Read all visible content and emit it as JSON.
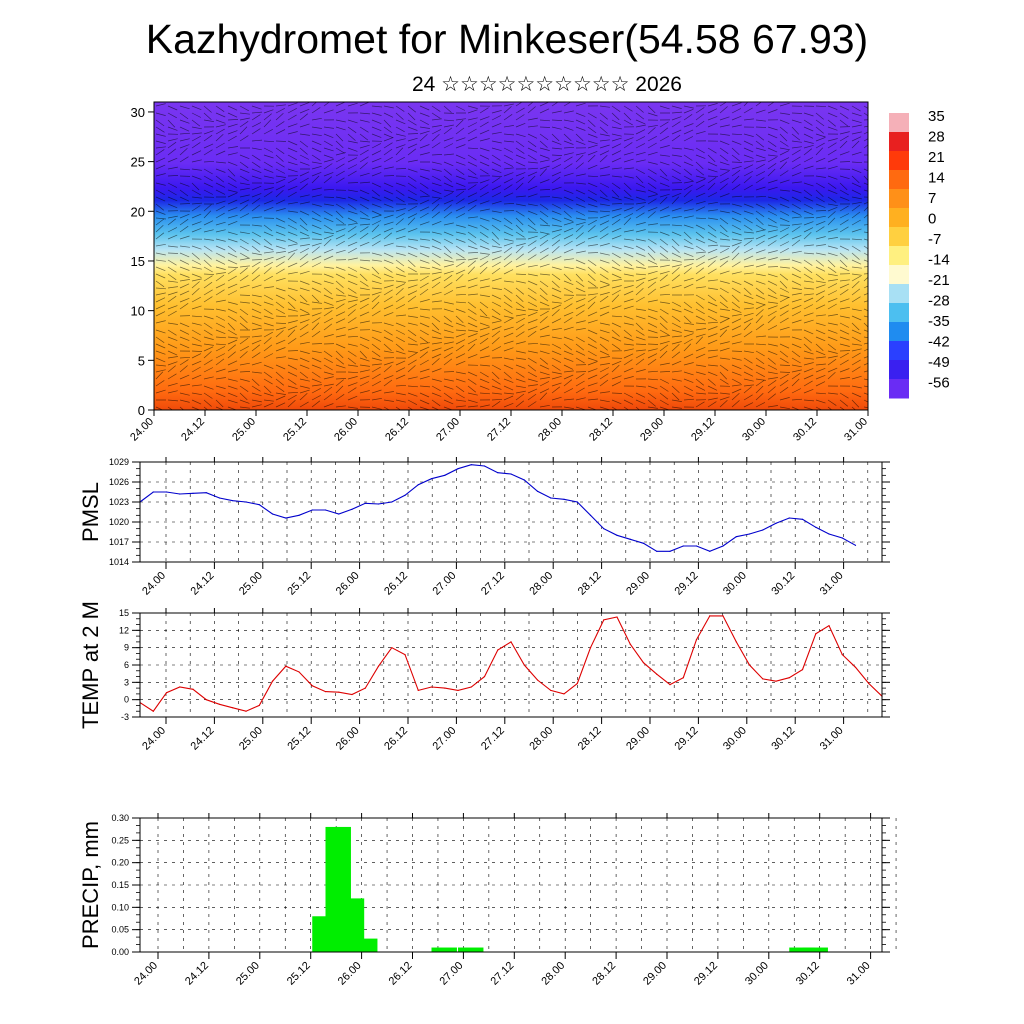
{
  "title": "Kazhydromet for Minkeser(54.58 67.93)",
  "subtitle": "24 ☆☆☆☆☆☆☆☆☆☆ 2026",
  "time_ticks": [
    "24.00",
    "24.12",
    "25.00",
    "25.12",
    "26.00",
    "26.12",
    "27.00",
    "27.12",
    "28.00",
    "28.12",
    "29.00",
    "29.12",
    "30.00",
    "30.12",
    "31.00"
  ],
  "colors": {
    "pmsl_line": "#0000cc",
    "temp_line": "#dd0000",
    "precip_bar": "#00ee00"
  },
  "chart_data": [
    {
      "type": "heatmap",
      "name": "temperature-wind-cross-section",
      "title": "",
      "xlabel": "",
      "ylabel": "",
      "yticks": [
        0,
        5,
        10,
        15,
        20,
        25,
        30
      ],
      "ylim": [
        0,
        31
      ],
      "colorbar": {
        "labels": [
          "35",
          "28",
          "21",
          "14",
          "7",
          "0",
          "-7",
          "-14",
          "-21",
          "-28",
          "-35",
          "-42",
          "-49",
          "-56"
        ],
        "placement": "right"
      },
      "layers": [
        {
          "from": 0,
          "to": 2,
          "range": "warmest orange/red near surface"
        },
        {
          "from": 2,
          "to": 14,
          "range": "orange to yellow"
        },
        {
          "from": 14,
          "to": 20,
          "range": "light blue to cyan"
        },
        {
          "from": 20,
          "to": 23,
          "range": "deep blue band"
        },
        {
          "from": 23,
          "to": 31,
          "range": "violet"
        }
      ]
    },
    {
      "type": "line",
      "name": "PMSL",
      "ylabel": "PMSL",
      "yticks": [
        "1014",
        "1017",
        "1020",
        "1023",
        "1026",
        "1029"
      ],
      "ylim": [
        1014,
        1029
      ],
      "xlim": [
        0,
        7
      ],
      "series": [
        {
          "name": "PMSL",
          "x": [
            0,
            0.125,
            0.25,
            0.375,
            0.5,
            0.625,
            0.75,
            0.875,
            1,
            1.125,
            1.25,
            1.375,
            1.5,
            1.625,
            1.75,
            1.875,
            2,
            2.125,
            2.25,
            2.375,
            2.5,
            2.625,
            2.75,
            2.875,
            3,
            3.125,
            3.25,
            3.375,
            3.5,
            3.625,
            3.75,
            3.875,
            4,
            4.125,
            4.25,
            4.375,
            4.5,
            4.625,
            4.75,
            4.875,
            5,
            5.125,
            5.25,
            5.375,
            5.5,
            5.625,
            5.75,
            5.875,
            6,
            6.125,
            6.25,
            6.375,
            6.5,
            6.625,
            6.75
          ],
          "values": [
            1023,
            1024.5,
            1024.5,
            1024.2,
            1024.3,
            1024.4,
            1023.6,
            1023.2,
            1023,
            1022.6,
            1021.2,
            1020.6,
            1021,
            1021.8,
            1021.8,
            1021.2,
            1021.9,
            1022.8,
            1022.7,
            1023,
            1024,
            1025.6,
            1026.5,
            1027,
            1028,
            1028.6,
            1028.4,
            1027.4,
            1027.2,
            1026.3,
            1024.6,
            1023.6,
            1023.4,
            1023,
            1021,
            1019,
            1018,
            1017.4,
            1016.8,
            1015.6,
            1015.6,
            1016.4,
            1016.4,
            1015.6,
            1016.4,
            1017.8,
            1018.2,
            1018.8,
            1019.8,
            1020.6,
            1020.4,
            1019.2,
            1018.2,
            1017.6,
            1016.5
          ]
        }
      ]
    },
    {
      "type": "line",
      "name": "TEMP at 2 M",
      "ylabel": "TEMP at 2 M",
      "yticks": [
        "-3",
        "0",
        "3",
        "6",
        "9",
        "12",
        "15"
      ],
      "ylim": [
        -3,
        15
      ],
      "xlim": [
        0,
        7
      ],
      "series": [
        {
          "name": "TEMP at 2 M",
          "x": [
            0,
            0.125,
            0.25,
            0.375,
            0.5,
            0.625,
            0.75,
            0.875,
            1,
            1.125,
            1.25,
            1.375,
            1.5,
            1.625,
            1.75,
            1.875,
            2,
            2.125,
            2.25,
            2.375,
            2.5,
            2.625,
            2.75,
            2.875,
            3,
            3.125,
            3.25,
            3.375,
            3.5,
            3.625,
            3.75,
            3.875,
            4,
            4.125,
            4.25,
            4.375,
            4.5,
            4.625,
            4.75,
            4.875,
            5,
            5.125,
            5.25,
            5.375,
            5.5,
            5.625,
            5.75,
            5.875,
            6,
            6.125,
            6.25,
            6.375,
            6.5,
            6.625,
            6.75,
            6.875,
            7
          ],
          "values": [
            -0.5,
            -2,
            1.2,
            2.2,
            1.8,
            0,
            -0.8,
            -1.4,
            -2,
            -1,
            3.2,
            5.8,
            4.8,
            2.4,
            1.4,
            1.3,
            0.9,
            2,
            5.8,
            9,
            7.8,
            1.6,
            2.2,
            2,
            1.6,
            2.2,
            4,
            8.6,
            10,
            6,
            3.4,
            1.6,
            1,
            2.8,
            9,
            13.8,
            14.3,
            9.6,
            6.4,
            4.4,
            2.6,
            3.8,
            10.4,
            14.5,
            14.5,
            10,
            6,
            3.6,
            3.2,
            3.8,
            5.2,
            11.4,
            12.8,
            7.8,
            5.6,
            2.8,
            0.6
          ]
        }
      ]
    },
    {
      "type": "bar",
      "name": "PRECIP, mm",
      "ylabel": "PRECIP, mm",
      "yticks": [
        "0.00",
        "0.05",
        "0.10",
        "0.15",
        "0.20",
        "0.25",
        "0.30"
      ],
      "ylim": [
        0,
        0.3
      ],
      "xlim": [
        0,
        7
      ],
      "series": [
        {
          "name": "PRECIP, mm",
          "x": [
            1.625,
            1.75,
            1.875,
            2,
            2.75,
            3,
            6.125,
            6.25
          ],
          "values": [
            0.08,
            0.28,
            0.12,
            0.03,
            0.01,
            0.01,
            0.01,
            0.01
          ]
        }
      ]
    }
  ]
}
